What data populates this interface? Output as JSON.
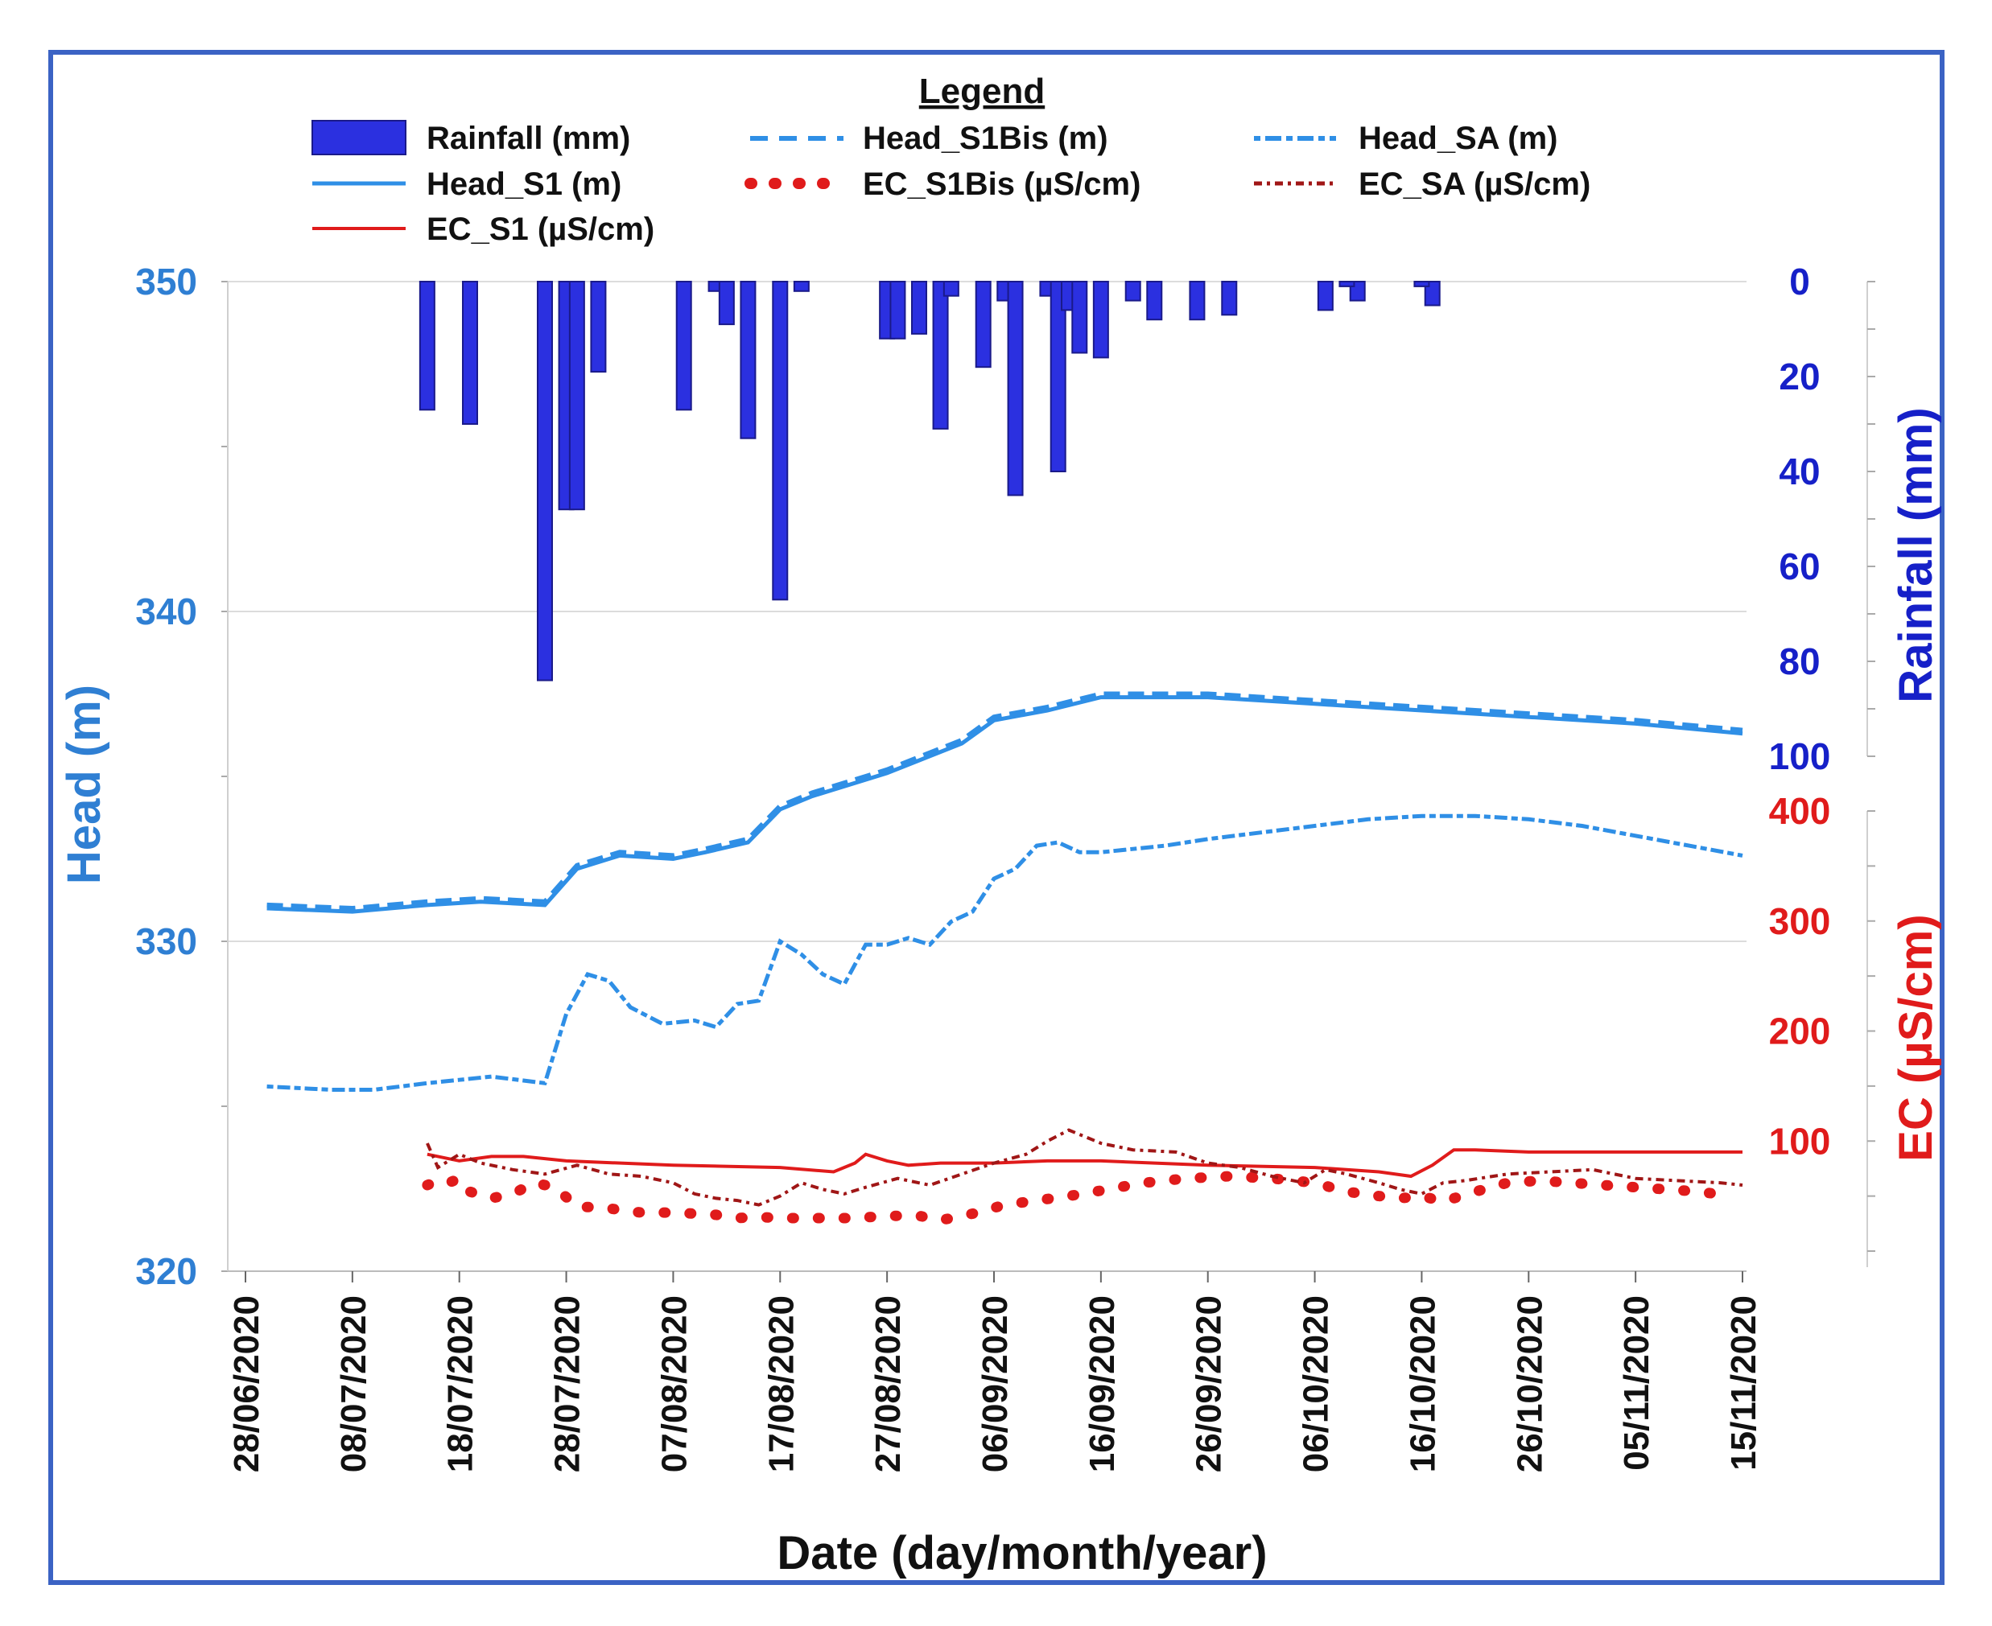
{
  "chart_data": {
    "type": "line",
    "title": "",
    "xlabel": "Date (day/month/year)",
    "x_tick_labels": [
      "28/06/2020",
      "08/07/2020",
      "18/07/2020",
      "28/07/2020",
      "07/08/2020",
      "17/08/2020",
      "27/08/2020",
      "06/09/2020",
      "16/09/2020",
      "26/09/2020",
      "06/10/2020",
      "16/10/2020",
      "26/10/2020",
      "05/11/2020",
      "15/11/2020"
    ],
    "x_range_days": [
      0,
      140
    ],
    "x_unit": "days since 28/06/2020",
    "axes": {
      "head": {
        "label": "Head (m)",
        "ylim": [
          320,
          350
        ],
        "ticks": [
          "320",
          "330",
          "340",
          "350"
        ],
        "color": "#2f7fd3"
      },
      "rainfall": {
        "label": "Rainfall (mm)",
        "ylim": [
          0,
          100
        ],
        "inverted": true,
        "ticks": [
          "0",
          "20",
          "40",
          "60",
          "80",
          "100"
        ],
        "color": "#1620c8"
      },
      "ec": {
        "label": "EC (µS/cm)",
        "ylim": [
          0,
          400
        ],
        "ticks": [
          "100",
          "200",
          "300",
          "400"
        ],
        "color": "#e01b1b"
      }
    },
    "legend": {
      "title": "Legend",
      "items": [
        {
          "key": "rainfall",
          "label": "Rainfall (mm)"
        },
        {
          "key": "head_s1bis",
          "label": "Head_S1Bis (m)"
        },
        {
          "key": "head_sa",
          "label": "Head_SA (m)"
        },
        {
          "key": "head_s1",
          "label": "Head_S1 (m)"
        },
        {
          "key": "ec_s1bis",
          "label": "EC_S1Bis (µS/cm)"
        },
        {
          "key": "ec_sa",
          "label": "EC_SA (µS/cm)"
        },
        {
          "key": "ec_s1",
          "label": "EC_S1 (µS/cm)"
        }
      ]
    },
    "rainfall": {
      "name": "Rainfall (mm)",
      "days": [
        17,
        21,
        28,
        30,
        31,
        33,
        41,
        44,
        45,
        47,
        50,
        52,
        60,
        61,
        63,
        65,
        66,
        69,
        71,
        72,
        75,
        76,
        77,
        78,
        80,
        83,
        85,
        89,
        92,
        101,
        104,
        111,
        110,
        103,
        119,
        115
      ],
      "values": [
        27,
        30,
        84,
        48,
        48,
        19,
        27,
        2,
        9,
        33,
        67,
        2,
        12,
        12,
        11,
        31,
        3,
        18,
        4,
        45,
        3,
        40,
        6,
        15,
        16,
        4,
        8,
        8,
        7,
        6,
        4,
        5,
        1,
        1,
        0,
        0
      ]
    },
    "series": [
      {
        "key": "head_s1",
        "name": "Head_S1 (m)",
        "axis": "head",
        "x": [
          2,
          10,
          17,
          22,
          28,
          31,
          35,
          40,
          43,
          47,
          50,
          53,
          60,
          67,
          70,
          75,
          80,
          85,
          90,
          100,
          110,
          120,
          130,
          140
        ],
        "y": [
          331.0,
          330.9,
          331.1,
          331.2,
          331.1,
          332.2,
          332.6,
          332.5,
          332.7,
          333.0,
          334.0,
          334.4,
          335.1,
          336.0,
          336.7,
          337.0,
          337.4,
          337.4,
          337.4,
          337.2,
          337.0,
          336.8,
          336.6,
          336.3
        ]
      },
      {
        "key": "head_s1bis",
        "name": "Head_S1Bis (m)",
        "axis": "head",
        "x": [
          2,
          10,
          17,
          22,
          28,
          31,
          35,
          40,
          43,
          47,
          50,
          53,
          60,
          67,
          70,
          75,
          80,
          85,
          90,
          100,
          110,
          120,
          130,
          140
        ],
        "y": [
          331.1,
          331.0,
          331.2,
          331.3,
          331.2,
          332.3,
          332.7,
          332.6,
          332.8,
          333.1,
          334.1,
          334.5,
          335.2,
          336.1,
          336.8,
          337.1,
          337.5,
          337.5,
          337.5,
          337.3,
          337.1,
          336.9,
          336.7,
          336.4
        ]
      },
      {
        "key": "head_sa",
        "name": "Head_SA (m)",
        "axis": "head",
        "x": [
          2,
          8,
          12,
          17,
          20,
          23,
          28,
          30,
          32,
          34,
          36,
          39,
          42,
          44,
          46,
          48,
          50,
          52,
          54,
          56,
          58,
          60,
          62,
          64,
          66,
          68,
          70,
          72,
          74,
          76,
          78,
          80,
          83,
          86,
          90,
          95,
          100,
          105,
          110,
          115,
          120,
          125,
          130,
          135,
          140
        ],
        "y": [
          325.6,
          325.5,
          325.5,
          325.7,
          325.8,
          325.9,
          325.7,
          327.8,
          329.0,
          328.8,
          328.0,
          327.5,
          327.6,
          327.4,
          328.1,
          328.2,
          330.0,
          329.6,
          329.0,
          328.7,
          329.9,
          329.9,
          330.1,
          329.9,
          330.6,
          330.9,
          331.9,
          332.2,
          332.9,
          333.0,
          332.7,
          332.7,
          332.8,
          332.9,
          333.1,
          333.3,
          333.5,
          333.7,
          333.8,
          333.8,
          333.7,
          333.5,
          333.2,
          332.9,
          332.6
        ]
      },
      {
        "key": "ec_s1",
        "name": "EC_S1 (µS/cm)",
        "axis": "ec",
        "x": [
          17,
          20,
          23,
          26,
          30,
          40,
          50,
          55,
          57,
          58,
          60,
          62,
          65,
          70,
          75,
          80,
          90,
          100,
          106,
          109,
          111,
          113,
          115,
          120,
          130,
          140
        ],
        "y": [
          88,
          82,
          86,
          86,
          82,
          78,
          76,
          72,
          80,
          88,
          82,
          78,
          80,
          80,
          82,
          82,
          78,
          76,
          72,
          68,
          78,
          92,
          92,
          90,
          90,
          90
        ]
      },
      {
        "key": "ec_s1bis",
        "name": "EC_S1Bis (µS/cm)",
        "axis": "ec",
        "x": [
          17,
          18,
          19,
          20,
          21,
          23,
          25,
          27,
          29,
          31,
          33,
          37,
          40,
          42,
          44,
          46,
          48,
          50,
          52,
          54,
          57,
          60,
          63,
          65,
          68,
          71,
          74,
          77,
          80,
          84,
          88,
          92,
          96,
          100,
          103,
          106,
          108,
          110,
          112,
          115,
          118,
          121,
          124,
          127,
          130,
          133,
          136,
          139
        ],
        "y": [
          60,
          64,
          62,
          66,
          54,
          48,
          52,
          62,
          58,
          40,
          40,
          35,
          35,
          34,
          33,
          30,
          31,
          30,
          30,
          30,
          30,
          32,
          32,
          28,
          34,
          42,
          46,
          50,
          55,
          62,
          66,
          68,
          66,
          62,
          54,
          50,
          48,
          50,
          45,
          54,
          62,
          64,
          62,
          60,
          58,
          56,
          54,
          50
        ]
      },
      {
        "key": "ec_sa",
        "name": "EC_SA (µS/cm)",
        "axis": "ec",
        "x": [
          17,
          18,
          20,
          22,
          25,
          28,
          31,
          34,
          37,
          40,
          42,
          44,
          46,
          48,
          50,
          52,
          54,
          56,
          58,
          61,
          64,
          67,
          70,
          73,
          75,
          77,
          80,
          83,
          87,
          90,
          93,
          96,
          99,
          101,
          103,
          106,
          108,
          110,
          112,
          114,
          118,
          122,
          126,
          130,
          134,
          138,
          140
        ],
        "y": [
          98,
          76,
          88,
          80,
          74,
          70,
          78,
          70,
          68,
          62,
          52,
          48,
          46,
          42,
          50,
          62,
          56,
          52,
          58,
          66,
          60,
          70,
          80,
          88,
          100,
          110,
          98,
          92,
          90,
          80,
          76,
          68,
          62,
          74,
          70,
          62,
          56,
          52,
          62,
          64,
          70,
          72,
          74,
          66,
          64,
          62,
          60
        ]
      }
    ]
  }
}
